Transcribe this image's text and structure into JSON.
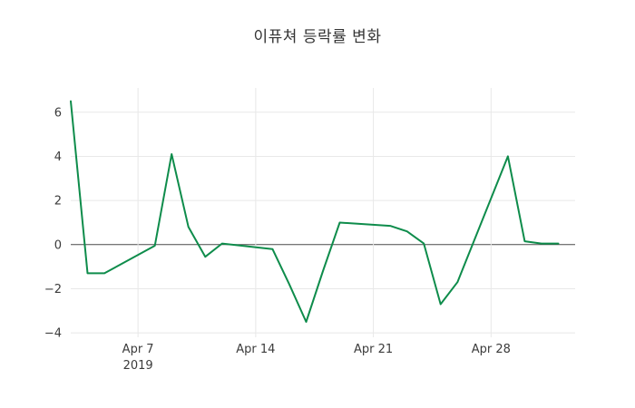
{
  "figure": {
    "title": "이퓨쳐 등락률 변화"
  },
  "chart_data": {
    "type": "line",
    "title": "이퓨쳐 등락률 변화",
    "xlabel": "",
    "ylabel": "",
    "x": [
      "2019-04-03",
      "2019-04-04",
      "2019-04-05",
      "2019-04-08",
      "2019-04-09",
      "2019-04-10",
      "2019-04-11",
      "2019-04-12",
      "2019-04-15",
      "2019-04-16",
      "2019-04-17",
      "2019-04-18",
      "2019-04-19",
      "2019-04-22",
      "2019-04-23",
      "2019-04-24",
      "2019-04-25",
      "2019-04-26",
      "2019-04-29",
      "2019-04-30",
      "2019-05-01",
      "2019-05-02"
    ],
    "series": [
      {
        "name": "등락률",
        "color": "#0e8c4b",
        "values": [
          6.5,
          -1.3,
          -1.3,
          -0.05,
          4.1,
          0.8,
          -0.55,
          0.05,
          -0.2,
          -1.8,
          -3.5,
          -1.2,
          1.0,
          0.85,
          0.6,
          0.05,
          -2.7,
          -1.7,
          4.0,
          0.15,
          0.05,
          0.05
        ]
      }
    ],
    "xlim": [
      "2019-04-03",
      "2019-05-03"
    ],
    "ylim": [
      -4.2,
      7.1
    ],
    "grid": true,
    "legend": "none",
    "yticks": [
      {
        "value": -4,
        "label": "−4"
      },
      {
        "value": -2,
        "label": "−2"
      },
      {
        "value": 0,
        "label": "0"
      },
      {
        "value": 2,
        "label": "2"
      },
      {
        "value": 4,
        "label": "4"
      },
      {
        "value": 6,
        "label": "6"
      }
    ],
    "xticks": [
      {
        "date": "2019-04-07",
        "label": "Apr 7",
        "sublabel": "2019"
      },
      {
        "date": "2019-04-14",
        "label": "Apr 14",
        "sublabel": ""
      },
      {
        "date": "2019-04-21",
        "label": "Apr 21",
        "sublabel": ""
      },
      {
        "date": "2019-04-28",
        "label": "Apr 28",
        "sublabel": ""
      }
    ],
    "colors": {
      "line": "#0e8c4b",
      "grid": "#e8e8e8",
      "zeroline": "#4a4a4a",
      "tick_text": "#3b3b3b",
      "title_text": "#333333",
      "background": "#ffffff"
    }
  }
}
